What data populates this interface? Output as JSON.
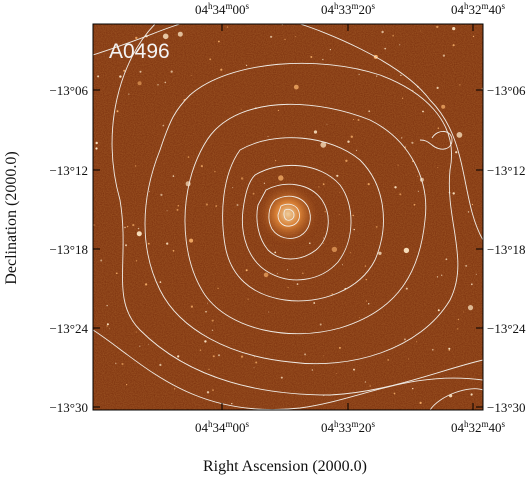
{
  "panel_label": "A0496",
  "ra_axis": {
    "title": "Right Ascension (2000.0)",
    "ticks": [
      {
        "h": "04",
        "m": "34",
        "s": "00",
        "value": "04h34m00s"
      },
      {
        "h": "04",
        "m": "33",
        "s": "20",
        "value": "04h33m20s"
      },
      {
        "h": "04",
        "m": "32",
        "s": "40",
        "value": "04h32m40s"
      }
    ]
  },
  "dec_axis": {
    "title": "Declination (2000.0)",
    "ticks": [
      "−13°06",
      "−13°12",
      "−13°18",
      "−13°24",
      "−13°30"
    ]
  },
  "colors": {
    "background_image": "#7a2e0c",
    "contour": "#f0ece6",
    "frame": "#000000"
  }
}
